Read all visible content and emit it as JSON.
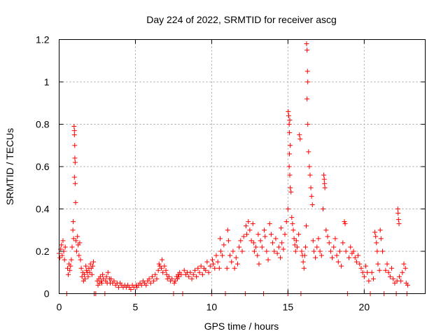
{
  "chart_data": {
    "type": "scatter",
    "title": "Day 224 of 2022, SRMTID for receiver ascg",
    "xlabel": "GPS time / hours",
    "ylabel": "SRMTID / TECUs",
    "xlim": [
      0,
      24
    ],
    "ylim": [
      0,
      1.2
    ],
    "xticks": [
      0,
      5,
      10,
      15,
      20
    ],
    "xtick_labels": [
      "0",
      "5",
      "10",
      "15",
      "20"
    ],
    "yticks": [
      0,
      0.2,
      0.4,
      0.6,
      0.8,
      1.0,
      1.2
    ],
    "ytick_labels": [
      "0",
      "0.2",
      "0.4",
      "0.6",
      "0.8",
      "1",
      "1.2"
    ],
    "grid": true,
    "marker": "+",
    "color": "#ff0000",
    "series": [
      {
        "name": "SRMTID",
        "points": [
          [
            0.0,
            0.19
          ],
          [
            0.05,
            0.17
          ],
          [
            0.1,
            0.21
          ],
          [
            0.15,
            0.23
          ],
          [
            0.2,
            0.18
          ],
          [
            0.25,
            0.25
          ],
          [
            0.3,
            0.2
          ],
          [
            0.35,
            0.16
          ],
          [
            0.4,
            0.22
          ],
          [
            0.5,
            0.0
          ],
          [
            0.55,
            0.12
          ],
          [
            0.6,
            0.09
          ],
          [
            0.65,
            0.14
          ],
          [
            0.7,
            0.11
          ],
          [
            0.75,
            0.13
          ],
          [
            0.8,
            0.16
          ],
          [
            0.85,
            0.22
          ],
          [
            0.9,
            0.3
          ],
          [
            0.92,
            0.34
          ],
          [
            0.95,
            0.26
          ],
          [
            0.98,
            0.79
          ],
          [
            1.0,
            0.77
          ],
          [
            1.0,
            0.75
          ],
          [
            1.02,
            0.7
          ],
          [
            1.03,
            0.64
          ],
          [
            1.05,
            0.62
          ],
          [
            1.0,
            0.55
          ],
          [
            1.05,
            0.52
          ],
          [
            1.08,
            0.43
          ],
          [
            1.1,
            0.25
          ],
          [
            1.15,
            0.2
          ],
          [
            1.2,
            0.27
          ],
          [
            1.25,
            0.23
          ],
          [
            1.3,
            0.18
          ],
          [
            1.35,
            0.24
          ],
          [
            1.4,
            0.16
          ],
          [
            1.45,
            0.12
          ],
          [
            1.5,
            0.08
          ],
          [
            1.55,
            0.1
          ],
          [
            1.6,
            0.06
          ],
          [
            1.65,
            0.09
          ],
          [
            1.7,
            0.07
          ],
          [
            1.75,
            0.13
          ],
          [
            1.8,
            0.11
          ],
          [
            1.85,
            0.1
          ],
          [
            1.9,
            0.08
          ],
          [
            1.95,
            0.12
          ],
          [
            2.0,
            0.1
          ],
          [
            2.05,
            0.14
          ],
          [
            2.1,
            0.12
          ],
          [
            2.15,
            0.09
          ],
          [
            2.2,
            0.13
          ],
          [
            2.25,
            0.15
          ],
          [
            2.3,
            0.0
          ],
          [
            2.4,
            0.0
          ],
          [
            2.5,
            0.06
          ],
          [
            2.55,
            0.04
          ],
          [
            2.6,
            0.07
          ],
          [
            2.65,
            0.05
          ],
          [
            2.7,
            0.08
          ],
          [
            2.75,
            0.06
          ],
          [
            2.8,
            0.05
          ],
          [
            2.85,
            0.09
          ],
          [
            2.9,
            0.07
          ],
          [
            3.0,
            0.0
          ],
          [
            3.05,
            0.06
          ],
          [
            3.1,
            0.08
          ],
          [
            3.15,
            0.05
          ],
          [
            3.2,
            0.1
          ],
          [
            3.3,
            0.07
          ],
          [
            3.35,
            0.05
          ],
          [
            3.4,
            0.07
          ],
          [
            3.5,
            0.05
          ],
          [
            3.6,
            0.06
          ],
          [
            3.7,
            0.04
          ],
          [
            3.8,
            0.05
          ],
          [
            3.9,
            0.03
          ],
          [
            4.0,
            0.05
          ],
          [
            4.1,
            0.04
          ],
          [
            4.2,
            0.03
          ],
          [
            4.3,
            0.04
          ],
          [
            4.4,
            0.03
          ],
          [
            4.5,
            0.04
          ],
          [
            4.6,
            0.03
          ],
          [
            4.7,
            0.02
          ],
          [
            4.8,
            0.04
          ],
          [
            4.9,
            0.03
          ],
          [
            5.0,
            0.0
          ],
          [
            5.05,
            0.04
          ],
          [
            5.1,
            0.03
          ],
          [
            5.2,
            0.04
          ],
          [
            5.3,
            0.05
          ],
          [
            5.4,
            0.04
          ],
          [
            5.5,
            0.06
          ],
          [
            5.6,
            0.05
          ],
          [
            5.7,
            0.04
          ],
          [
            5.8,
            0.06
          ],
          [
            5.9,
            0.07
          ],
          [
            6.0,
            0.05
          ],
          [
            6.1,
            0.08
          ],
          [
            6.2,
            0.06
          ],
          [
            6.3,
            0.09
          ],
          [
            6.4,
            0.07
          ],
          [
            6.5,
            0.11
          ],
          [
            6.55,
            0.14
          ],
          [
            6.6,
            0.13
          ],
          [
            6.7,
            0.12
          ],
          [
            6.75,
            0.16
          ],
          [
            6.8,
            0.1
          ],
          [
            6.9,
            0.13
          ],
          [
            7.0,
            0.11
          ],
          [
            7.05,
            0.09
          ],
          [
            7.1,
            0.07
          ],
          [
            7.2,
            0.08
          ],
          [
            7.3,
            0.06
          ],
          [
            7.4,
            0.07
          ],
          [
            7.5,
            0.0
          ],
          [
            7.55,
            0.05
          ],
          [
            7.6,
            0.06
          ],
          [
            7.7,
            0.08
          ],
          [
            7.75,
            0.07
          ],
          [
            7.8,
            0.09
          ],
          [
            7.85,
            0.08
          ],
          [
            7.9,
            0.1
          ],
          [
            8.0,
            0.09
          ],
          [
            8.1,
            0.0
          ],
          [
            8.2,
            0.11
          ],
          [
            8.3,
            0.09
          ],
          [
            8.4,
            0.1
          ],
          [
            8.5,
            0.08
          ],
          [
            8.6,
            0.1
          ],
          [
            8.7,
            0.07
          ],
          [
            8.8,
            0.09
          ],
          [
            8.9,
            0.11
          ],
          [
            9.0,
            0.08
          ],
          [
            9.1,
            0.12
          ],
          [
            9.2,
            0.1
          ],
          [
            9.3,
            0.13
          ],
          [
            9.4,
            0.09
          ],
          [
            9.5,
            0.12
          ],
          [
            9.6,
            0.11
          ],
          [
            9.7,
            0.15
          ],
          [
            9.8,
            0.1
          ],
          [
            9.9,
            0.13
          ],
          [
            10.0,
            0.0
          ],
          [
            10.05,
            0.16
          ],
          [
            10.1,
            0.14
          ],
          [
            10.2,
            0.12
          ],
          [
            10.3,
            0.18
          ],
          [
            10.4,
            0.15
          ],
          [
            10.5,
            0.12
          ],
          [
            10.55,
            0.26
          ],
          [
            10.6,
            0.2
          ],
          [
            10.7,
            0.18
          ],
          [
            10.8,
            0.23
          ],
          [
            10.9,
            0.0
          ],
          [
            11.0,
            0.12
          ],
          [
            11.05,
            0.3
          ],
          [
            11.1,
            0.25
          ],
          [
            11.2,
            0.18
          ],
          [
            11.3,
            0.15
          ],
          [
            11.4,
            0.2
          ],
          [
            11.5,
            0.12
          ],
          [
            11.6,
            0.17
          ],
          [
            11.7,
            0.14
          ],
          [
            11.8,
            0.22
          ],
          [
            11.9,
            0.25
          ],
          [
            12.0,
            0.2
          ],
          [
            12.1,
            0.27
          ],
          [
            12.2,
            0.0
          ],
          [
            12.25,
            0.32
          ],
          [
            12.3,
            0.28
          ],
          [
            12.4,
            0.34
          ],
          [
            12.5,
            0.3
          ],
          [
            12.6,
            0.25
          ],
          [
            12.7,
            0.33
          ],
          [
            12.75,
            0.24
          ],
          [
            12.8,
            0.2
          ],
          [
            12.9,
            0.22
          ],
          [
            13.0,
            0.18
          ],
          [
            13.05,
            0.28
          ],
          [
            13.1,
            0.14
          ],
          [
            13.2,
            0.25
          ],
          [
            13.3,
            0.22
          ],
          [
            13.4,
            0.0
          ],
          [
            13.45,
            0.3
          ],
          [
            13.5,
            0.27
          ],
          [
            13.6,
            0.2
          ],
          [
            13.7,
            0.16
          ],
          [
            13.8,
            0.33
          ],
          [
            13.9,
            0.28
          ],
          [
            14.0,
            0.24
          ],
          [
            14.1,
            0.2
          ],
          [
            14.2,
            0.26
          ],
          [
            14.3,
            0.19
          ],
          [
            14.4,
            0.22
          ],
          [
            14.5,
            0.17
          ],
          [
            14.55,
            0.31
          ],
          [
            14.6,
            0.24
          ],
          [
            14.7,
            0.21
          ],
          [
            14.8,
            0.28
          ],
          [
            14.9,
            0.34
          ],
          [
            15.0,
            0.0
          ],
          [
            15.0,
            0.4
          ],
          [
            15.02,
            0.86
          ],
          [
            15.05,
            0.84
          ],
          [
            15.08,
            0.8
          ],
          [
            15.1,
            0.76
          ],
          [
            15.12,
            0.82
          ],
          [
            15.15,
            0.7
          ],
          [
            15.1,
            0.66
          ],
          [
            15.08,
            0.6
          ],
          [
            15.12,
            0.56
          ],
          [
            15.15,
            0.5
          ],
          [
            15.2,
            0.48
          ],
          [
            15.25,
            0.36
          ],
          [
            15.3,
            0.33
          ],
          [
            15.35,
            0.3
          ],
          [
            15.4,
            0.26
          ],
          [
            15.45,
            0.23
          ],
          [
            15.5,
            0.2
          ],
          [
            15.55,
            0.25
          ],
          [
            15.6,
            0.22
          ],
          [
            15.7,
            0.28
          ],
          [
            15.75,
            0.75
          ],
          [
            15.8,
            0.73
          ],
          [
            15.85,
            0.0
          ],
          [
            15.9,
            0.2
          ],
          [
            15.95,
            0.18
          ],
          [
            16.0,
            0.15
          ],
          [
            16.05,
            0.12
          ],
          [
            16.1,
            0.18
          ],
          [
            16.15,
            0.22
          ],
          [
            16.2,
            0.32
          ],
          [
            16.22,
            1.18
          ],
          [
            16.25,
            1.15
          ],
          [
            16.28,
            1.05
          ],
          [
            16.3,
            1.0
          ],
          [
            16.25,
            0.92
          ],
          [
            16.3,
            0.8
          ],
          [
            16.35,
            0.67
          ],
          [
            16.4,
            0.6
          ],
          [
            16.45,
            0.56
          ],
          [
            16.5,
            0.5
          ],
          [
            16.55,
            0.46
          ],
          [
            16.6,
            0.42
          ],
          [
            16.65,
            0.25
          ],
          [
            16.7,
            0.2
          ],
          [
            16.8,
            0.17
          ],
          [
            16.9,
            0.22
          ],
          [
            17.0,
            0.26
          ],
          [
            17.1,
            0.2
          ],
          [
            17.2,
            0.18
          ],
          [
            17.3,
            0.4
          ],
          [
            17.35,
            0.56
          ],
          [
            17.38,
            0.54
          ],
          [
            17.4,
            0.52
          ],
          [
            17.42,
            0.5
          ],
          [
            17.5,
            0.3
          ],
          [
            17.6,
            0.27
          ],
          [
            17.7,
            0.24
          ],
          [
            17.8,
            0.2
          ],
          [
            17.9,
            0.17
          ],
          [
            18.0,
            0.22
          ],
          [
            18.1,
            0.26
          ],
          [
            18.2,
            0.18
          ],
          [
            18.3,
            0.15
          ],
          [
            18.4,
            0.2
          ],
          [
            18.5,
            0.13
          ],
          [
            18.6,
            0.24
          ],
          [
            18.7,
            0.34
          ],
          [
            18.75,
            0.33
          ],
          [
            18.8,
            0.2
          ],
          [
            18.9,
            0.0
          ],
          [
            19.0,
            0.17
          ],
          [
            19.1,
            0.22
          ],
          [
            19.2,
            0.19
          ],
          [
            19.3,
            0.2
          ],
          [
            19.4,
            0.17
          ],
          [
            19.5,
            0.15
          ],
          [
            19.6,
            0.18
          ],
          [
            19.7,
            0.14
          ],
          [
            19.8,
            0.12
          ],
          [
            19.9,
            0.1
          ],
          [
            20.0,
            0.08
          ],
          [
            20.1,
            0.13
          ],
          [
            20.2,
            0.1
          ],
          [
            20.3,
            0.06
          ],
          [
            20.4,
            0.0
          ],
          [
            20.5,
            0.1
          ],
          [
            20.6,
            0.07
          ],
          [
            20.7,
            0.29
          ],
          [
            20.75,
            0.27
          ],
          [
            20.8,
            0.24
          ],
          [
            20.85,
            0.2
          ],
          [
            20.9,
            0.14
          ],
          [
            21.0,
            0.11
          ],
          [
            21.05,
            0.3
          ],
          [
            21.1,
            0.26
          ],
          [
            21.2,
            0.2
          ],
          [
            21.3,
            0.0
          ],
          [
            21.4,
            0.11
          ],
          [
            21.5,
            0.14
          ],
          [
            21.6,
            0.1
          ],
          [
            21.7,
            0.08
          ],
          [
            21.8,
            0.12
          ],
          [
            21.9,
            0.07
          ],
          [
            22.0,
            0.05
          ],
          [
            22.1,
            0.0
          ],
          [
            22.15,
            0.06
          ],
          [
            22.2,
            0.4
          ],
          [
            22.22,
            0.38
          ],
          [
            22.25,
            0.35
          ],
          [
            22.28,
            0.33
          ],
          [
            22.3,
            0.08
          ],
          [
            22.4,
            0.06
          ],
          [
            22.5,
            0.1
          ],
          [
            22.6,
            0.14
          ],
          [
            22.7,
            0.12
          ],
          [
            22.75,
            0.05
          ],
          [
            22.8,
            0.0
          ],
          [
            22.85,
            0.04
          ]
        ]
      }
    ]
  }
}
